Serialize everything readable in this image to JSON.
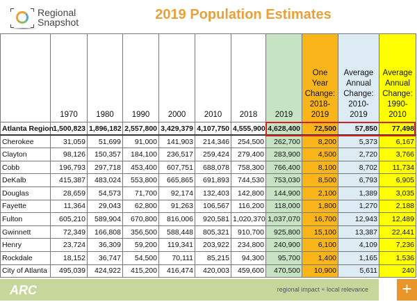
{
  "logo": {
    "line1": "Regional",
    "line2": "Snapshot"
  },
  "title": "2019 Population Estimates",
  "table": {
    "headers": [
      "",
      "1970",
      "1980",
      "1990",
      "2000",
      "2010",
      "2018",
      "2019",
      "One Year Change: 2018-2019",
      "Average Annual Change: 2010-2019",
      "Average Annual Change: 1990-2010"
    ],
    "rows": [
      [
        "Atlanta Region",
        "1,500,823",
        "1,896,182",
        "2,557,800",
        "3,429,379",
        "4,107,750",
        "4,555,900",
        "4,628,400",
        "72,500",
        "57,850",
        "77,498"
      ],
      [
        "Cherokee",
        "31,059",
        "51,699",
        "91,000",
        "141,903",
        "214,346",
        "254,500",
        "262,700",
        "8,200",
        "5,373",
        "6,167"
      ],
      [
        "Clayton",
        "98,126",
        "150,357",
        "184,100",
        "236,517",
        "259,424",
        "279,400",
        "283,900",
        "4,500",
        "2,720",
        "3,766"
      ],
      [
        "Cobb",
        "196,793",
        "297,718",
        "453,400",
        "607,751",
        "688,078",
        "758,300",
        "766,400",
        "8,100",
        "8,702",
        "11,734"
      ],
      [
        "DeKalb",
        "415,387",
        "483,024",
        "553,800",
        "665,865",
        "691,893",
        "744,530",
        "753,030",
        "8,500",
        "6,793",
        "6,905"
      ],
      [
        "Douglas",
        "28,659",
        "54,573",
        "71,700",
        "92,174",
        "132,403",
        "142,800",
        "144,900",
        "2,100",
        "1,389",
        "3,035"
      ],
      [
        "Fayette",
        "11,364",
        "29,043",
        "62,800",
        "91,263",
        "106,567",
        "116,200",
        "118,000",
        "1,800",
        "1,270",
        "2,188"
      ],
      [
        "Fulton",
        "605,210",
        "589,904",
        "670,800",
        "816,006",
        "920,581",
        "1,020,370",
        "1,037,070",
        "16,700",
        "12,943",
        "12,489"
      ],
      [
        "Gwinnett",
        "72,349",
        "166,808",
        "356,500",
        "588,448",
        "805,321",
        "910,700",
        "925,800",
        "15,100",
        "13,387",
        "22,441"
      ],
      [
        "Henry",
        "23,724",
        "36,309",
        "59,200",
        "119,341",
        "203,922",
        "234,800",
        "240,900",
        "6,100",
        "4,109",
        "7,236"
      ],
      [
        "Rockdale",
        "18,152",
        "36,747",
        "54,500",
        "70,111",
        "85,215",
        "94,300",
        "95,700",
        "1,400",
        "1,165",
        "1,536"
      ],
      [
        " City of Atlanta",
        "495,039",
        "424,922",
        "415,200",
        "416,474",
        "420,003",
        "459,600",
        "470,500",
        "10,900",
        "5,611",
        "240"
      ]
    ]
  },
  "footer": {
    "logo": "ARC",
    "tagline": "regional impact + local relevance",
    "plus": "+"
  },
  "colors": {
    "title": "#e8a13a",
    "col2019": "#c6e3c3",
    "oneYear": "#f9b51a",
    "avg2010": "#ddebf4",
    "avg1990": "#ffff00",
    "highlight": "#d42020"
  }
}
